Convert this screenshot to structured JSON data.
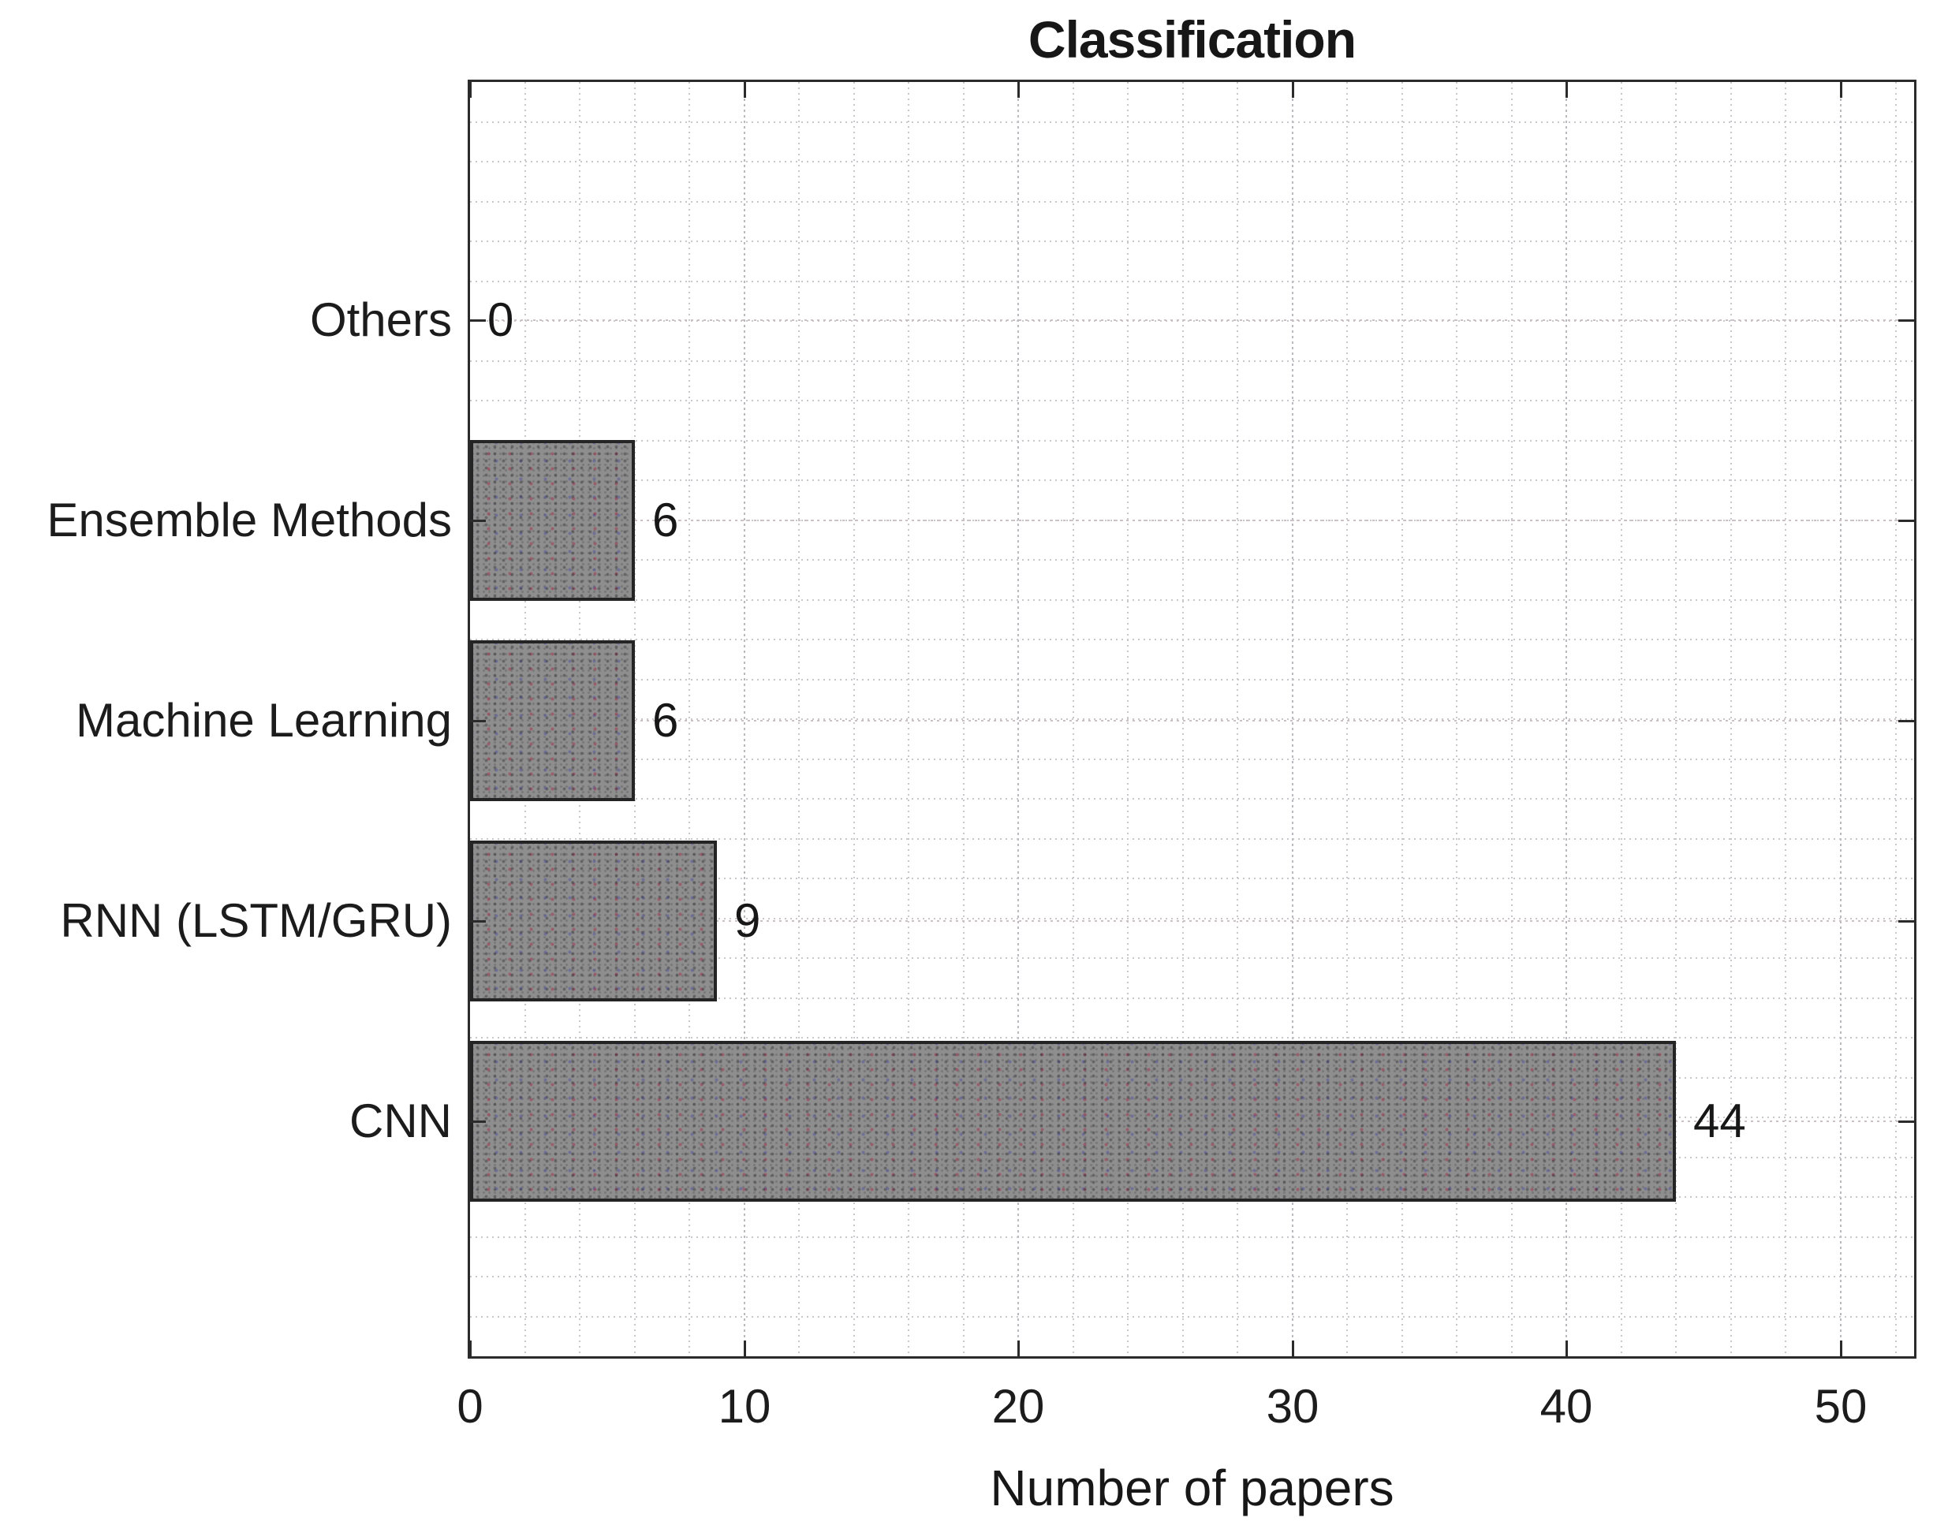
{
  "chart_data": {
    "type": "bar",
    "orientation": "horizontal",
    "title": "Classification",
    "xlabel": "Number of papers",
    "ylabel": "",
    "categories": [
      "Others",
      "Ensemble Methods",
      "Machine Learning",
      "RNN (LSTM/GRU)",
      "CNN"
    ],
    "values": [
      0,
      6,
      6,
      9,
      44
    ],
    "value_labels": [
      "0",
      "6",
      "6",
      "9",
      "44"
    ],
    "x_ticks": [
      0,
      10,
      20,
      30,
      40,
      50
    ],
    "x_tick_labels": [
      "0",
      "10",
      "20",
      "30",
      "40",
      "50"
    ],
    "xlim": [
      0,
      52.8
    ],
    "grid": "minor-dotted",
    "legend": "none",
    "colors": {
      "bar_fill": "#8e8e8e",
      "bar_edge": "#242424",
      "axis_box": "#2b2b2b",
      "grid_minor": "#c7c7cc",
      "grid_major": "#b9b9bf",
      "text": "#1c1c1c",
      "background": "#ffffff"
    }
  }
}
